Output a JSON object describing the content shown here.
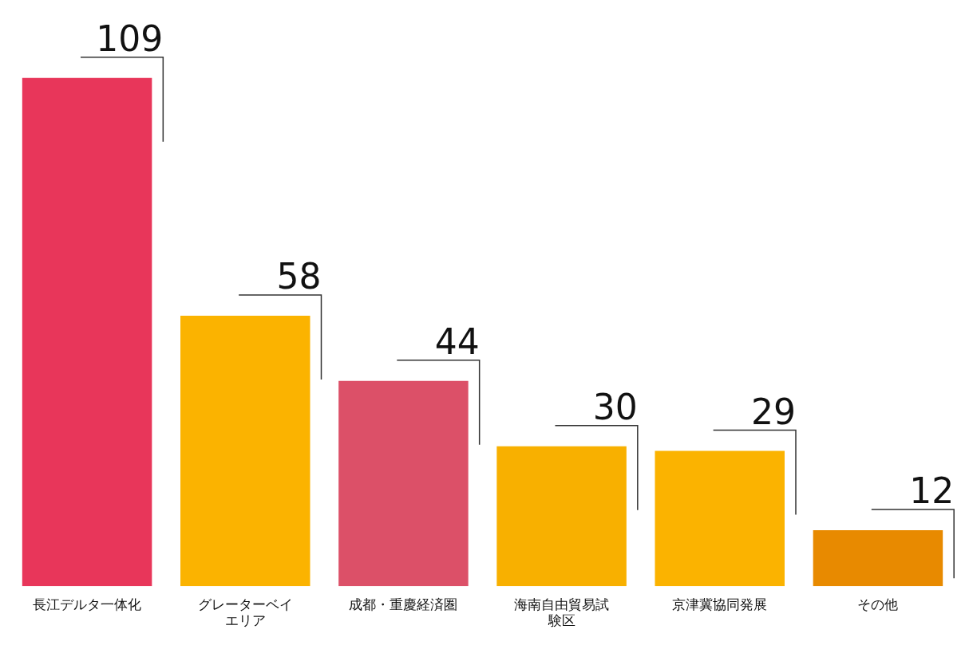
{
  "chart_data": {
    "type": "bar",
    "categories": [
      "長江デルタ一体化",
      "グレーターベイエリア",
      "成都・重慶経済圏",
      "海南自由貿易試験区",
      "京津冀協同発展",
      "その他"
    ],
    "values": [
      109,
      58,
      44,
      30,
      29,
      12
    ],
    "colors": [
      "#e8365a",
      "#fbb300",
      "#dc5068",
      "#f8b000",
      "#fbb300",
      "#e88a00"
    ],
    "ylim": [
      0,
      124
    ],
    "grid": false,
    "data_labels": true,
    "tick_labels": "x"
  }
}
